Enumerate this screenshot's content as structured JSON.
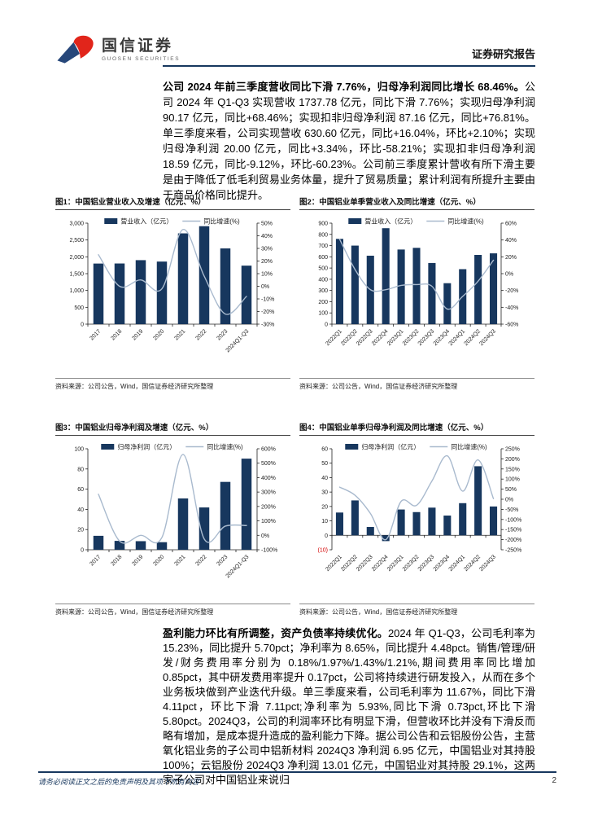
{
  "header": {
    "brand": "国信证券",
    "brand_en": "GUOSEN SECURITIES",
    "doc_type": "证券研究报告"
  },
  "paragraphs": [
    {
      "bold": "公司 2024 年前三季度营收同比下滑 7.76%，归母净利润同比增长 68.46%。",
      "rest": "公司 2024 年 Q1-Q3 实现营收 1737.78 亿元，同比下滑 7.76%；实现归母净利润 90.17 亿元，同比+68.46%；实现扣非归母净利润 87.16 亿元，同比+76.81%。单三季度来看，公司实现营收 630.60 亿元，同比+16.04%，环比+2.10%；实现归母净利润 20.00 亿元，同比+3.34%，环比-58.21%；实现扣非归母净利润 18.59 亿元，同比-9.12%，环比-60.23%。公司前三季度累计营收有所下滑主要是由于降低了低毛利贸易业务体量，提升了贸易质量；累计利润有所提升主要由于商品价格同比提升。"
    },
    {
      "bold": "盈利能力环比有所调整，资产负债率持续优化。",
      "rest": "2024 年 Q1-Q3，公司毛利率为 15.23%，同比提升 5.70pct；净利率为 8.65%，同比提升 4.48pct。销售/管理/研发/财务费用率分别为 0.18%/1.97%/1.43%/1.21%,期间费用率同比增加 0.85pct，其中研发费用率提升 0.17pct，公司将持续进行研发投入，从而在多个业务板块做到产业迭代升级。单三季度来看，公司毛利率为 11.67%，同比下滑 4.11pct，环比下滑 7.11pct;净利率为 5.93%,同比下滑 0.73pct,环比下滑 5.80pct。2024Q3，公司的利润率环比有明显下滑，但营收环比并没有下滑反而略有增加，是成本提升造成的盈利能力下降。据公司公告和云铝股份公告，主营氧化铝业务的子公司中铝新材料 2024Q3 净利润 6.95 亿元，中国铝业对其持股 100%；云铝股份 2024Q3 净利润 13.01 亿元，中国铝业对其持股 29.1%，这两家子公司对中国铝业来说归"
    }
  ],
  "charts": [
    {
      "type": "bar+line",
      "title": "图1：中国铝业营业收入及增速（亿元、%）",
      "source": "资料来源：公司公告，Wind，国信证券经济研究所整理",
      "legend_bar": "营业收入（亿元）",
      "legend_line": "同比增速(%)",
      "categories": [
        "2017",
        "2018",
        "2019",
        "2020",
        "2021",
        "2022",
        "2023",
        "2024Q1-Q3"
      ],
      "bars": [
        1800,
        1802,
        1901,
        1859,
        2697,
        2910,
        2250,
        1738
      ],
      "line": [
        25,
        0,
        5,
        -2,
        45,
        8,
        -22,
        -8
      ],
      "left_axis": {
        "min": 0,
        "max": 3000,
        "step": 500,
        "comma": true
      },
      "right_axis": {
        "min": -30,
        "max": 50,
        "step": 10
      }
    },
    {
      "type": "bar+line",
      "title": "图2：中国铝业单季营业收入及同比增速（亿元、%）",
      "source": "资料来源：公司公告，Wind，国信证券经济研究所整理",
      "legend_bar": "营业收入（亿元）",
      "legend_line": "同比增速(%)",
      "categories": [
        "2022Q1",
        "2022Q2",
        "2022Q3",
        "2022Q4",
        "2023Q1",
        "2023Q2",
        "2023Q3",
        "2023Q4",
        "2024Q1",
        "2024Q2",
        "2024Q3"
      ],
      "bars": [
        760,
        700,
        610,
        855,
        665,
        680,
        545,
        365,
        490,
        617,
        631
      ],
      "line": [
        41,
        5,
        -19,
        -19,
        -14,
        -13,
        -15,
        -42,
        -27,
        -9,
        16
      ],
      "left_axis": {
        "min": 0,
        "max": 900,
        "step": 100
      },
      "right_axis": {
        "min": -60,
        "max": 60,
        "step": 20
      }
    },
    {
      "type": "bar+line",
      "title": "图3：中国铝业归母净利润及增速（亿元、%）",
      "source": "资料来源：公司公告，Wind，国信证券经济研究所整理",
      "legend_bar": "归母净利润（亿元）",
      "legend_line": "同比增速(%)",
      "categories": [
        "2017",
        "2018",
        "2019",
        "2020",
        "2021",
        "2022",
        "2023",
        "2024Q1-Q3"
      ],
      "bars": [
        13.8,
        8.8,
        8.5,
        7.5,
        50.8,
        41.9,
        67.2,
        90.2
      ],
      "line": [
        285,
        -40,
        0,
        -15,
        560,
        -25,
        64,
        68
      ],
      "left_axis": {
        "min": 0,
        "max": 100,
        "step": 20
      },
      "right_axis": {
        "min": -100,
        "max": 600,
        "step": 100
      }
    },
    {
      "type": "bar+line",
      "title": "图4：中国铝业单季归母净利润及同比增速（亿元、%）",
      "source": "资料来源：公司公告，Wind，国信证券经济研究所整理",
      "legend_bar": "归母净利润（亿元）",
      "legend_line": "同比增速(%)",
      "categories": [
        "2022Q1",
        "2022Q2",
        "2022Q3",
        "2022Q4",
        "2023Q1",
        "2023Q2",
        "2023Q3",
        "2023Q4",
        "2024Q1",
        "2024Q2",
        "2024Q3"
      ],
      "bars": [
        15.8,
        24.2,
        5.8,
        -4.0,
        17.9,
        16.1,
        19.2,
        13.7,
        22.3,
        47.9,
        20.0
      ],
      "line": [
        60,
        20,
        -70,
        -200,
        -10,
        -30,
        90,
        215,
        40,
        195,
        3
      ],
      "left_axis": {
        "min": -10,
        "max": 60,
        "step": 10,
        "paren_negative": true
      },
      "right_axis": {
        "min": -250,
        "max": 250,
        "step": 50
      }
    }
  ],
  "footer": {
    "disclaimer": "请务必阅读正文之后的免责声明及其项下所有内容",
    "page_number": "2"
  },
  "colors": {
    "navy": "#17375E",
    "line_blue": "#A9BACE",
    "negative_red": "#D40000",
    "logo_red": "#E1251B",
    "logo_blue": "#27477A"
  }
}
